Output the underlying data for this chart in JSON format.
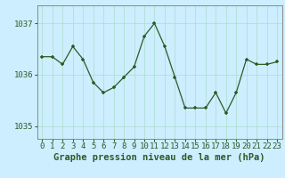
{
  "x": [
    0,
    1,
    2,
    3,
    4,
    5,
    6,
    7,
    8,
    9,
    10,
    11,
    12,
    13,
    14,
    15,
    16,
    17,
    18,
    19,
    20,
    21,
    22,
    23
  ],
  "y": [
    1036.35,
    1036.35,
    1036.2,
    1036.55,
    1036.3,
    1035.85,
    1035.65,
    1035.75,
    1035.95,
    1036.15,
    1036.75,
    1037.0,
    1036.55,
    1035.95,
    1035.35,
    1035.35,
    1035.35,
    1035.65,
    1035.25,
    1035.65,
    1036.3,
    1036.2,
    1036.2,
    1036.25
  ],
  "line_color": "#2d5a27",
  "marker_color": "#2d5a27",
  "bg_color": "#cceeff",
  "grid_color": "#aaddcc",
  "axis_color": "#2d5a27",
  "spine_color": "#888888",
  "title": "Graphe pression niveau de la mer (hPa)",
  "ylabel_ticks": [
    1035,
    1036,
    1037
  ],
  "ylim": [
    1034.75,
    1037.35
  ],
  "xlim": [
    -0.5,
    23.5
  ],
  "title_fontsize": 7.5,
  "tick_fontsize": 6.5
}
